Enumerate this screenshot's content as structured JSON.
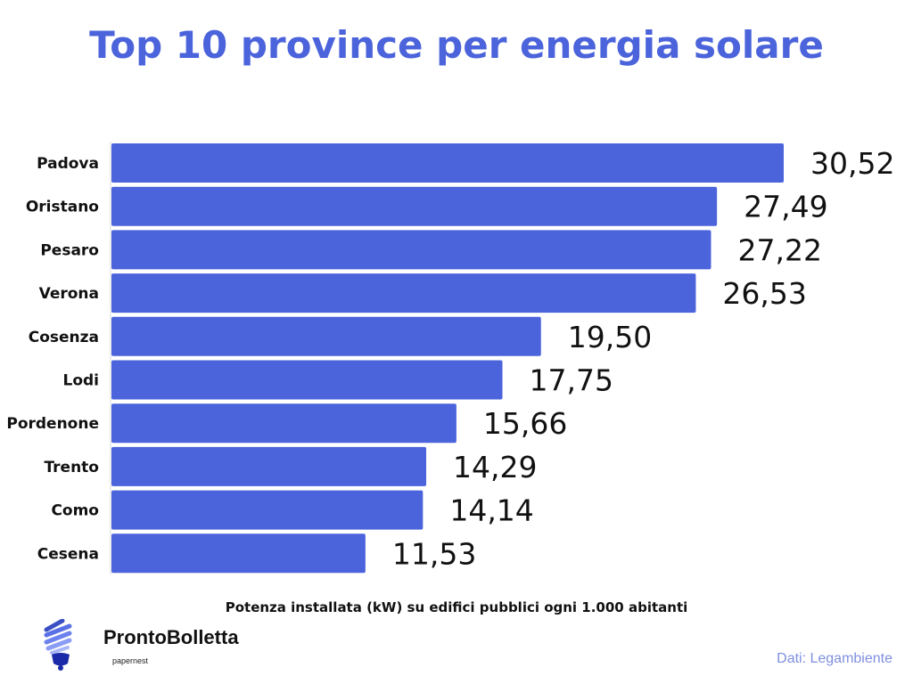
{
  "chart_data": {
    "type": "bar",
    "orientation": "horizontal",
    "title": "Top 10 province per energia solare",
    "xlabel": "Potenza installata (kW) su edifici pubblici ogni 1.000 abitanti",
    "categories": [
      "Padova",
      "Oristano",
      "Pesaro",
      "Verona",
      "Cosenza",
      "Lodi",
      "Pordenone",
      "Trento",
      "Como",
      "Cesena"
    ],
    "values": [
      30.52,
      27.49,
      27.22,
      26.53,
      19.5,
      17.75,
      15.66,
      14.29,
      14.14,
      11.53
    ],
    "value_labels": [
      "30,52",
      "27,49",
      "27,22",
      "26,53",
      "19,50",
      "17,75",
      "15,66",
      "14,29",
      "14,14",
      "11,53"
    ],
    "xlim": [
      0,
      30.52
    ],
    "grid": false,
    "bar_color": "#4B63DB"
  },
  "source": "Dati: Legambiente",
  "logo": {
    "brand": "ProntoBolletta",
    "sub": "papernest",
    "icon": "lightbulb-icon"
  }
}
